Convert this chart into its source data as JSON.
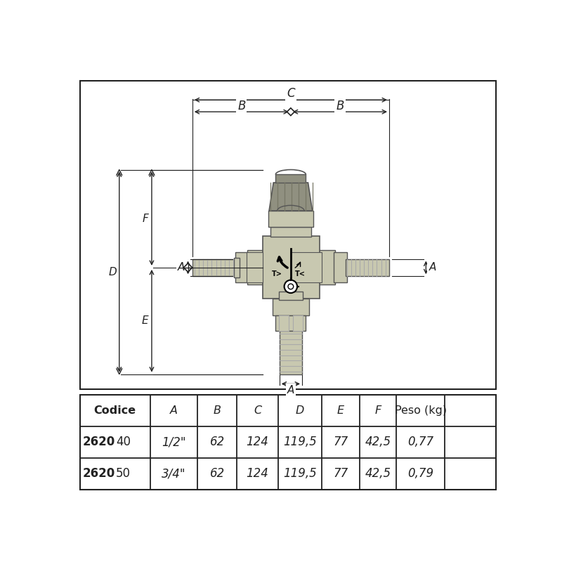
{
  "bg_color": "#ffffff",
  "line_color": "#222222",
  "table_headers": [
    "Codice",
    "A",
    "B",
    "C",
    "D",
    "E",
    "F",
    "Peso (kg)"
  ],
  "row1_bold": "2620",
  "row1_suffix": "40",
  "row1_vals": [
    "1/2\"",
    "62",
    "124",
    "119,5",
    "77",
    "42,5",
    "0,77"
  ],
  "row2_bold": "2620",
  "row2_suffix": "50",
  "row2_vals": [
    "3/4\"",
    "62",
    "124",
    "119,5",
    "77",
    "42,5",
    "0,79"
  ],
  "vc": "#c8c8b0",
  "vd": "#aaaaaa",
  "vk": "#909080",
  "ec": "#555555"
}
